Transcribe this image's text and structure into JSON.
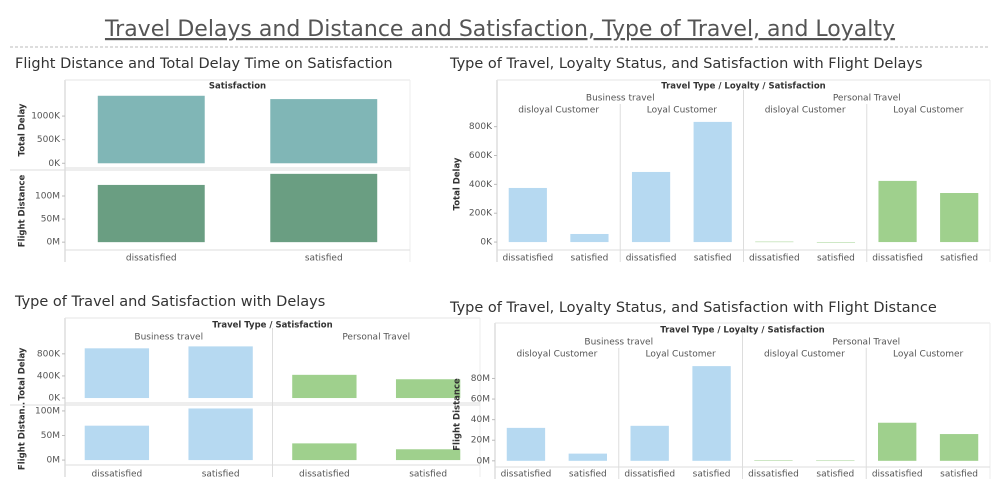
{
  "title": "Travel Delays and Distance and Satisfaction, Type of Travel, and Loyalty",
  "chart_data": [
    {
      "type": "bar",
      "title": "Flight Distance and Total Delay Time on Satisfaction",
      "header": "Satisfaction",
      "categories": [
        "dissatisfied",
        "satisfied"
      ],
      "rows": [
        {
          "label": "Total Delay",
          "color": "#80b6b6",
          "ylim": [
            -100000,
            1510000
          ],
          "yticks": [
            {
              "value": 0,
              "label": "0K"
            },
            {
              "value": 500000,
              "label": "500K"
            },
            {
              "value": 1000000,
              "label": "1000K"
            }
          ]
        },
        {
          "label": "Flight Distance",
          "color": "#6a9e82",
          "ylim": [
            -17000000,
            152000000
          ],
          "yticks": [
            {
              "value": 0,
              "label": "0M"
            },
            {
              "value": 50000000,
              "label": "50M"
            },
            {
              "value": 100000000,
              "label": "100M"
            }
          ]
        }
      ],
      "groups": [
        {
          "subgroups": [
            {
              "values": [
                [
                  1430000,
                  1360000
                ],
                [
                  124000000,
                  148000000
                ]
              ]
            }
          ]
        }
      ]
    },
    {
      "type": "bar",
      "title": "Type of Travel, Loyalty Status, and Satisfaction with Flight Delays",
      "header": "Travel Type / Loyalty / Satisfaction",
      "categories": [
        "dissatisfied",
        "satisfied"
      ],
      "rows": [
        {
          "label": "Total Delay",
          "ylim": [
            -55000,
            860000
          ],
          "yticks": [
            {
              "value": 0,
              "label": "0K"
            },
            {
              "value": 200000,
              "label": "200K"
            },
            {
              "value": 400000,
              "label": "400K"
            },
            {
              "value": 600000,
              "label": "600K"
            },
            {
              "value": 800000,
              "label": "800K"
            }
          ]
        }
      ],
      "groups": [
        {
          "name": "Business travel",
          "color": "#b6d9f1",
          "subgroups": [
            {
              "name": "disloyal Customer",
              "values": [
                [
                  375000,
                  56000
                ]
              ]
            },
            {
              "name": "Loyal Customer",
              "values": [
                [
                  486000,
                  833000
                ]
              ]
            }
          ]
        },
        {
          "name": "Personal Travel",
          "color": "#9fd08d",
          "subgroups": [
            {
              "name": "disloyal Customer",
              "values": [
                [
                  3000,
                  0
                ]
              ]
            },
            {
              "name": "Loyal Customer",
              "values": [
                [
                  424000,
                  340000
                ]
              ]
            }
          ]
        }
      ]
    },
    {
      "type": "bar",
      "title": "Type of Travel and Satisfaction with Delays",
      "header": "Travel Type / Satisfaction",
      "categories": [
        "dissatisfied",
        "satisfied"
      ],
      "rows": [
        {
          "label": "Total Delay",
          "ylim": [
            -90000,
            960000
          ],
          "yticks": [
            {
              "value": 0,
              "label": "0K"
            },
            {
              "value": 400000,
              "label": "400K"
            },
            {
              "value": 800000,
              "label": "800K"
            }
          ]
        },
        {
          "label": "Flight Distan..",
          "ylim": [
            -10000000,
            108000000
          ],
          "yticks": [
            {
              "value": 0,
              "label": "0M"
            },
            {
              "value": 50000000,
              "label": "50M"
            },
            {
              "value": 100000000,
              "label": "100M"
            }
          ]
        }
      ],
      "groups": [
        {
          "color": "#b6d9f1",
          "subgroups": [
            {
              "name": "Business travel",
              "values": [
                [
                  900000,
                  935000
                ],
                [
                  70000000,
                  105000000
                ]
              ]
            }
          ]
        },
        {
          "color": "#9fd08d",
          "subgroups": [
            {
              "name": "Personal Travel",
              "values": [
                [
                  420000,
                  340000
                ],
                [
                  34000000,
                  22000000
                ]
              ]
            }
          ]
        }
      ]
    },
    {
      "type": "bar",
      "title": "Type of Travel, Loyalty Status, and Satisfaction with Flight Distance",
      "header": "Travel Type / Loyalty / Satisfaction",
      "categories": [
        "dissatisfied",
        "satisfied"
      ],
      "rows": [
        {
          "label": "Flight Distance",
          "ylim": [
            -6000000,
            96000000
          ],
          "yticks": [
            {
              "value": 0,
              "label": "0M"
            },
            {
              "value": 20000000,
              "label": "20M"
            },
            {
              "value": 40000000,
              "label": "40M"
            },
            {
              "value": 60000000,
              "label": "60M"
            },
            {
              "value": 80000000,
              "label": "80M"
            }
          ]
        }
      ],
      "groups": [
        {
          "name": "Business travel",
          "color": "#b6d9f1",
          "subgroups": [
            {
              "name": "disloyal Customer",
              "values": [
                [
                  32000000,
                  7000000
                ]
              ]
            },
            {
              "name": "Loyal Customer",
              "values": [
                [
                  34000000,
                  92000000
                ]
              ]
            }
          ]
        },
        {
          "name": "Personal Travel",
          "color": "#9fd08d",
          "subgroups": [
            {
              "name": "disloyal Customer",
              "values": [
                [
                  500000,
                  300000
                ]
              ]
            },
            {
              "name": "Loyal Customer",
              "values": [
                [
                  37000000,
                  26000000
                ]
              ]
            }
          ]
        }
      ]
    }
  ]
}
